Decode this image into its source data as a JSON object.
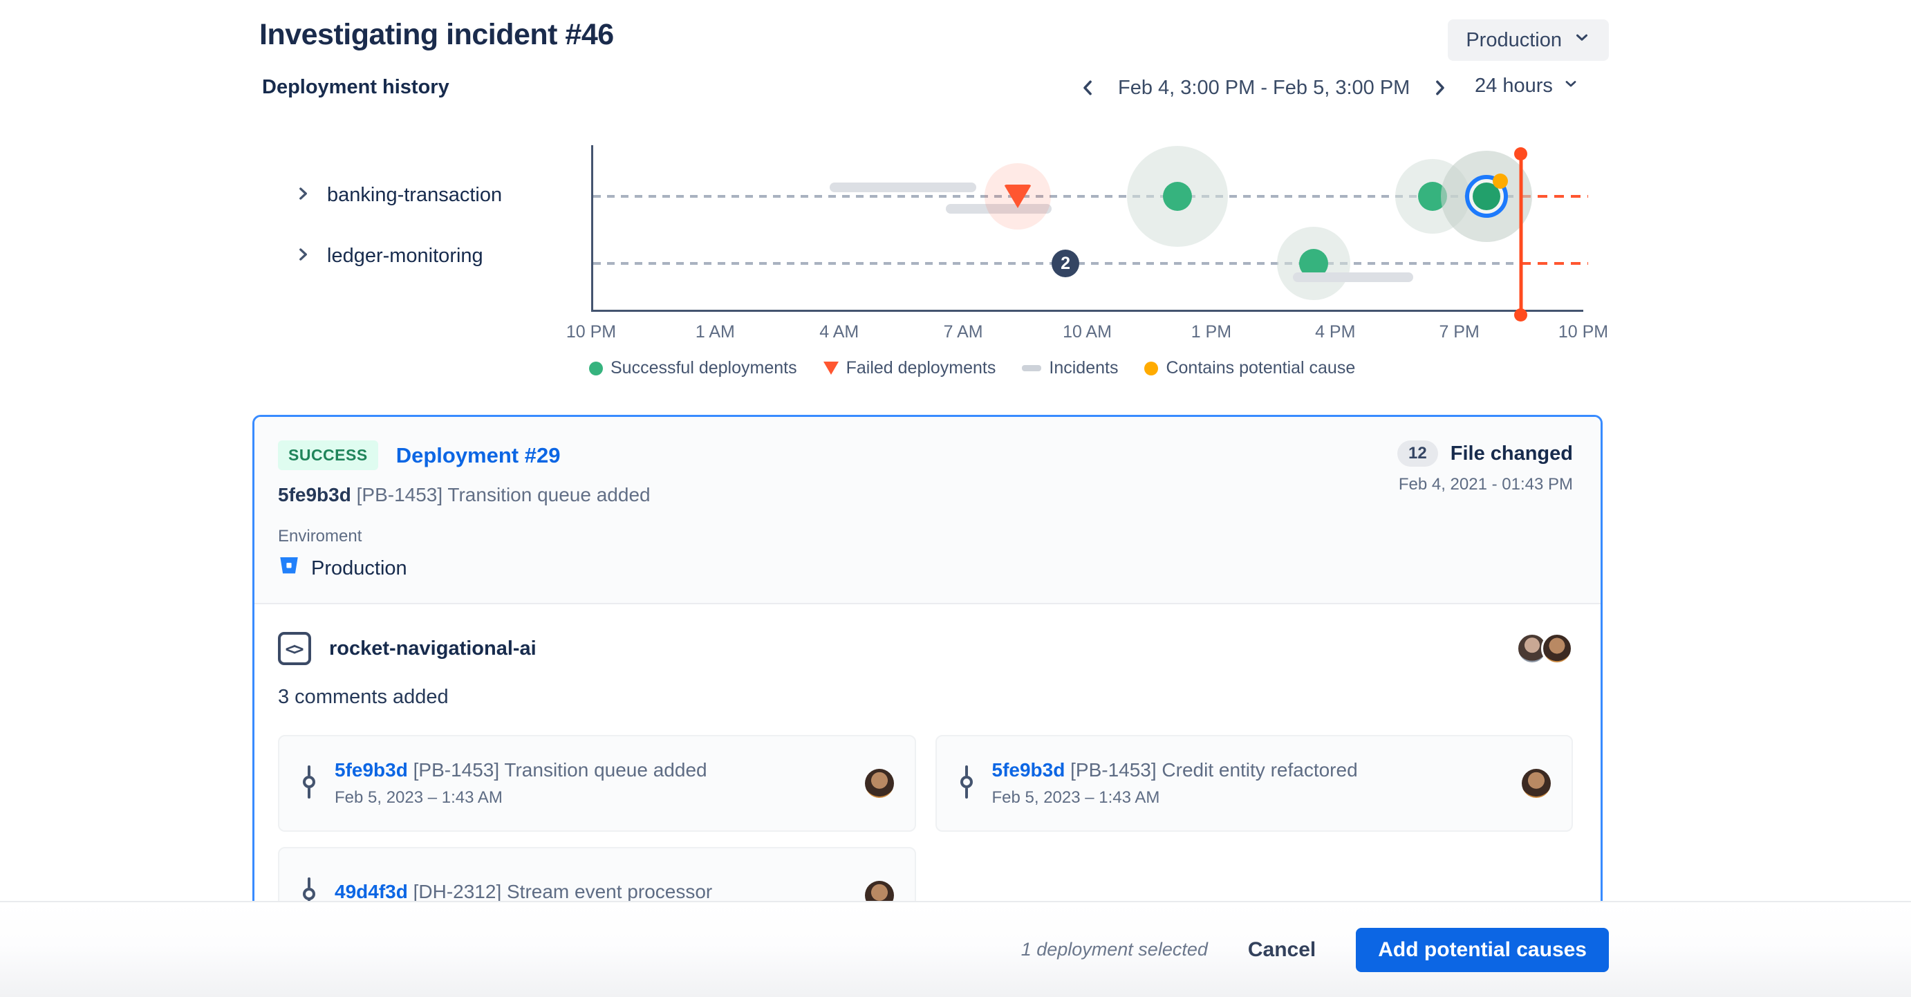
{
  "header": {
    "title": "Investigating incident #46",
    "environment_selector": "Production",
    "section_title": "Deployment history",
    "date_range": "Feb 4, 3:00 PM - Feb 5, 3:00 PM",
    "range_selector": "24 hours"
  },
  "chart_data": {
    "type": "timeline",
    "x_ticks": [
      "10 PM",
      "1 AM",
      "4 AM",
      "7 AM",
      "10 AM",
      "1 PM",
      "4 PM",
      "7 PM",
      "10 PM"
    ],
    "axis_span_hours": 24,
    "grid": "dashed-horizontal-per-row",
    "legend": [
      "Successful deployments",
      "Failed deployments",
      "Incidents",
      "Contains potential cause"
    ],
    "legend_position": "bottom",
    "cursor_x_pct": 93.7,
    "cursor_time": "~8:30 PM",
    "rows": [
      {
        "label": "banking-transaction",
        "events": [
          {
            "kind": "incident",
            "x1_pct": 23.9,
            "x2_pct": 38.7,
            "dy": -13,
            "time": "~3:45 AM – 7:15 AM"
          },
          {
            "kind": "incident",
            "x1_pct": 35.6,
            "x2_pct": 46.3,
            "dy": 18,
            "time": "~6:30 AM – 9:00 AM"
          },
          {
            "kind": "failed",
            "x_pct": 42.9,
            "halo": 96,
            "time": "~8:15 AM"
          },
          {
            "kind": "success",
            "x_pct": 59.0,
            "halo": 146,
            "time": "~12:10 PM"
          },
          {
            "kind": "success",
            "x_pct": 84.8,
            "halo": 108,
            "time": "~6:20 PM"
          },
          {
            "kind": "success_selected_cause",
            "x_pct": 90.2,
            "halo": 132,
            "time": "~7:40 PM",
            "selected": true,
            "contains_potential_cause": true
          }
        ]
      },
      {
        "label": "ledger-monitoring",
        "events": [
          {
            "kind": "group",
            "x_pct": 47.7,
            "count": "2",
            "time": "~9:25 AM"
          },
          {
            "kind": "success",
            "x_pct": 72.8,
            "halo": 106,
            "time": "~3:30 PM"
          },
          {
            "kind": "incident",
            "x1_pct": 70.7,
            "x2_pct": 82.8,
            "dy": 20,
            "time": "~3:00 PM – 5:50 PM"
          }
        ]
      }
    ],
    "colors": {
      "success": "#36B37E",
      "success_selected": "#22A06B",
      "failed": "#FF5630",
      "incident": "#DCDFE4",
      "potential_cause": "#FFAB00",
      "cursor": "#FF4B1F",
      "selection_ring": "#1D7AFC",
      "gridline": "#A9B2C0"
    }
  },
  "deployment_card": {
    "status": "SUCCESS",
    "title": "Deployment #29",
    "commit_hash": "5fe9b3d",
    "commit_message": "[PB-1453] Transition queue added",
    "environment_label": "Enviroment",
    "environment_value": "Production",
    "files_changed_count": "12",
    "files_changed_label": "File changed",
    "timestamp": "Feb 4, 2021 - 01:43 PM",
    "repository": {
      "name": "rocket-navigational-ai",
      "comments_summary": "3 comments added"
    },
    "commits": [
      {
        "hash": "5fe9b3d",
        "message": "[PB-1453] Transition queue added",
        "date": "Feb 5, 2023 – 1:43 AM"
      },
      {
        "hash": "5fe9b3d",
        "message": "[PB-1453] Credit entity refactored",
        "date": "Feb 5, 2023 – 1:43 AM"
      },
      {
        "hash": "49d4f3d",
        "message": "[DH-2312] Stream event processor",
        "date": ""
      }
    ]
  },
  "footer": {
    "selection_summary": "1 deployment selected",
    "cancel_label": "Cancel",
    "primary_label": "Add potential causes"
  }
}
